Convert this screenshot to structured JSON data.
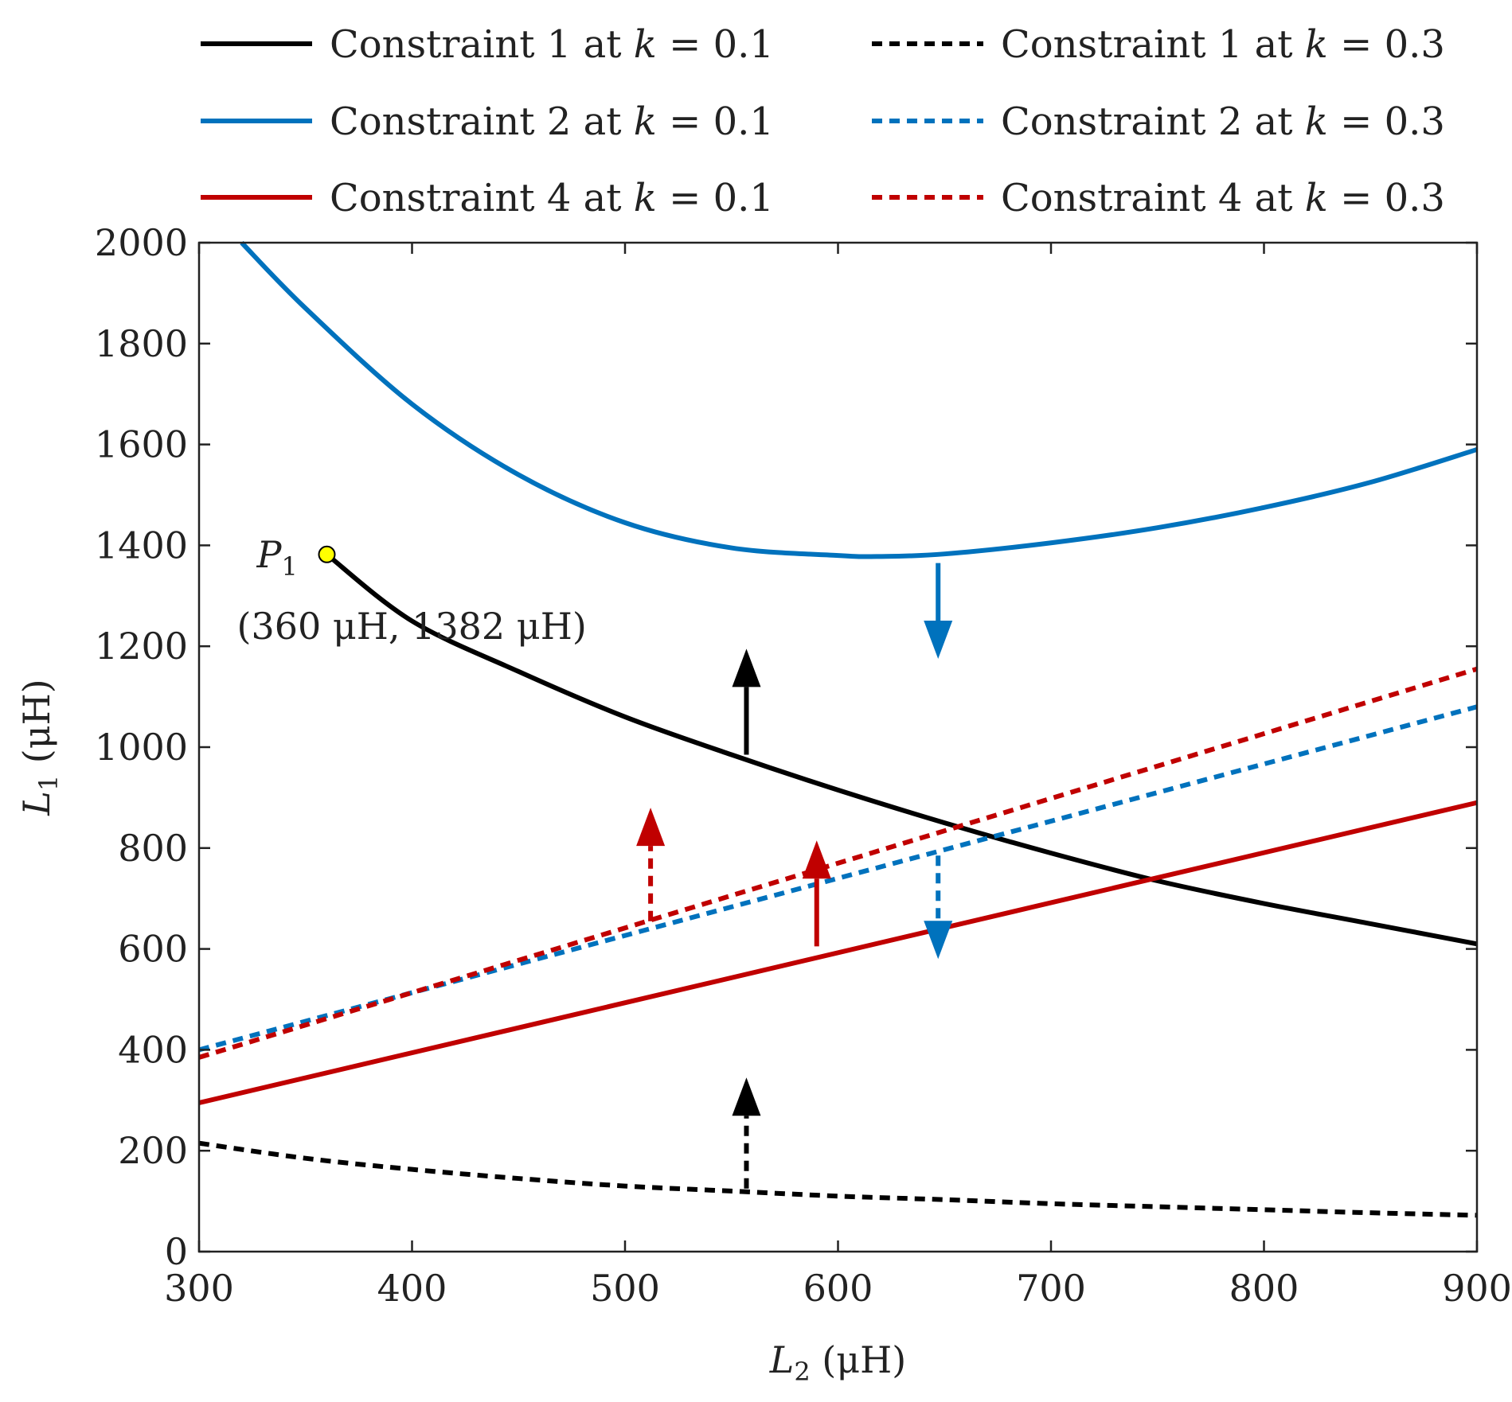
{
  "chart_data": {
    "type": "line",
    "xlabel": {
      "var": "L",
      "sub": "2",
      "unit": " (μH)"
    },
    "ylabel": {
      "var": "L",
      "sub": "1",
      "unit": " (μH)"
    },
    "xlim": [
      300,
      900
    ],
    "ylim": [
      0,
      2000
    ],
    "xticks": [
      "300",
      "400",
      "500",
      "600",
      "700",
      "800",
      "900"
    ],
    "yticks": [
      "0",
      "200",
      "400",
      "600",
      "800",
      "1000",
      "1200",
      "1400",
      "1600",
      "1800",
      "2000"
    ],
    "grid": false,
    "legend_position": "top",
    "series": [
      {
        "key": "c1_k01",
        "prefix": "Constraint 1 at ",
        "kvar": "k",
        "suffix": " = 0.1",
        "color": "#000000",
        "style": "solid",
        "x": [
          360,
          400,
          450,
          500,
          550,
          600,
          650,
          700,
          750,
          800,
          850,
          900
        ],
        "y": [
          1382,
          1250,
          1150,
          1060,
          985,
          915,
          850,
          790,
          735,
          690,
          650,
          610
        ]
      },
      {
        "key": "c1_k03",
        "prefix": "Constraint 1 at ",
        "kvar": "k",
        "suffix": " = 0.3",
        "color": "#000000",
        "style": "dashed",
        "x": [
          300,
          350,
          400,
          450,
          500,
          550,
          600,
          650,
          700,
          750,
          800,
          850,
          900
        ],
        "y": [
          215,
          185,
          163,
          145,
          130,
          120,
          110,
          103,
          95,
          89,
          83,
          77,
          72
        ]
      },
      {
        "key": "c2_k01",
        "prefix": "Constraint 2 at ",
        "kvar": "k",
        "suffix": " = 0.1",
        "color": "#0072BD",
        "style": "solid",
        "x": [
          320,
          350,
          400,
          450,
          500,
          550,
          600,
          620,
          650,
          700,
          750,
          800,
          850,
          900
        ],
        "y": [
          2000,
          1870,
          1680,
          1540,
          1445,
          1395,
          1380,
          1378,
          1383,
          1405,
          1435,
          1475,
          1525,
          1590
        ]
      },
      {
        "key": "c2_k03",
        "prefix": "Constraint 2 at ",
        "kvar": "k",
        "suffix": " = 0.3",
        "color": "#0072BD",
        "style": "dashed",
        "x": [
          300,
          900
        ],
        "y": [
          400,
          1080
        ]
      },
      {
        "key": "c4_k01",
        "prefix": "Constraint 4 at ",
        "kvar": "k",
        "suffix": " = 0.1",
        "color": "#C00000",
        "style": "solid",
        "x": [
          300,
          900
        ],
        "y": [
          295,
          890
        ]
      },
      {
        "key": "c4_k03",
        "prefix": "Constraint 4 at ",
        "kvar": "k",
        "suffix": " = 0.3",
        "color": "#C00000",
        "style": "dashed",
        "x": [
          300,
          900
        ],
        "y": [
          385,
          1155
        ]
      }
    ],
    "arrows": [
      {
        "name": "c1-k01-arrow",
        "x": 557,
        "y_from": 985,
        "y_to": 1195,
        "color": "#000000",
        "style": "solid"
      },
      {
        "name": "c2-k01-arrow",
        "x": 647,
        "y_from": 1365,
        "y_to": 1175,
        "color": "#0072BD",
        "style": "solid"
      },
      {
        "name": "c4-k01-arrow",
        "x": 590,
        "y_from": 605,
        "y_to": 815,
        "color": "#C00000",
        "style": "solid"
      },
      {
        "name": "c4-k03-arrow",
        "x": 512,
        "y_from": 655,
        "y_to": 880,
        "color": "#C00000",
        "style": "dashed"
      },
      {
        "name": "c2-k03-arrow",
        "x": 647,
        "y_from": 785,
        "y_to": 580,
        "color": "#0072BD",
        "style": "dashed"
      },
      {
        "name": "c1-k03-arrow",
        "x": 557,
        "y_from": 125,
        "y_to": 345,
        "color": "#000000",
        "style": "dashed"
      }
    ],
    "annotations": {
      "point": {
        "x": 360,
        "y": 1382,
        "label_var": "P",
        "label_sub": "1",
        "text": "(360 μH, 1382 μH)",
        "color": "#FFFF00"
      }
    }
  }
}
